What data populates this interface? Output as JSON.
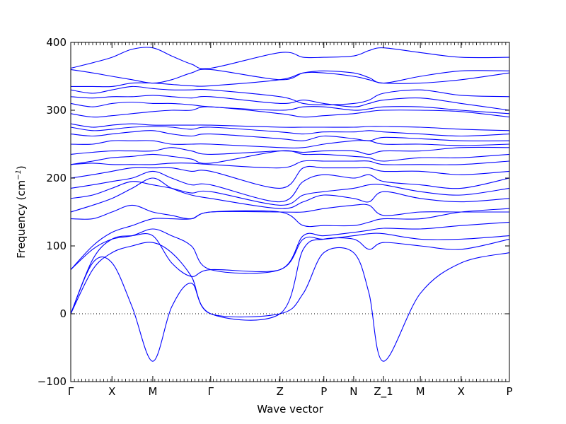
{
  "chart_data": {
    "type": "line",
    "title": "",
    "xlabel": "Wave vector",
    "ylabel": "Frequency (cm",
    "ylabel_sup": "−1",
    "ylabel_close": ")",
    "ylim": [
      -100,
      400
    ],
    "yticks": [
      -100,
      0,
      100,
      200,
      300,
      400
    ],
    "ytick_labels": [
      "−100",
      "0",
      "100",
      "200",
      "300",
      "400"
    ],
    "grid": false,
    "zero_line": true,
    "line_color": "#0000ff",
    "xlim": [
      0,
      10.0
    ],
    "high_symmetry_points": [
      {
        "label": "Γ",
        "x": 0.0
      },
      {
        "label": "X",
        "x": 0.94
      },
      {
        "label": "M",
        "x": 1.87
      },
      {
        "label": "Γ",
        "x": 3.19
      },
      {
        "label": "Z",
        "x": 4.77
      },
      {
        "label": "P",
        "x": 5.77
      },
      {
        "label": "N",
        "x": 6.45
      },
      {
        "label": "Z_1",
        "x": 7.13
      },
      {
        "label": "M",
        "x": 7.97
      },
      {
        "label": "X",
        "x": 8.9
      },
      {
        "label": "P",
        "x": 10.0
      }
    ],
    "series": [
      {
        "values": [
          0,
          75,
          75,
          10,
          -70,
          10,
          45,
          0,
          0,
          30,
          90,
          90,
          30,
          -70,
          30,
          75,
          90
        ]
      },
      {
        "values": [
          0,
          65,
          90,
          100,
          105,
          90,
          55,
          0,
          0,
          95,
          110,
          110,
          95,
          105,
          100,
          95,
          110
        ]
      },
      {
        "values": [
          0,
          80,
          110,
          115,
          115,
          75,
          55,
          65,
          65,
          110,
          110,
          115,
          118,
          118,
          110,
          110,
          115
        ]
      },
      {
        "values": [
          65,
          95,
          110,
          115,
          125,
          115,
          100,
          65,
          65,
          115,
          115,
          120,
          123,
          126,
          125,
          130,
          135
        ]
      },
      {
        "values": [
          65,
          100,
          120,
          130,
          140,
          140,
          140,
          150,
          150,
          130,
          130,
          130,
          135,
          140,
          140,
          150,
          155
        ]
      },
      {
        "values": [
          140,
          140,
          150,
          160,
          150,
          145,
          140,
          150,
          150,
          150,
          155,
          160,
          160,
          145,
          150,
          150,
          150
        ]
      },
      {
        "values": [
          150,
          160,
          170,
          185,
          200,
          185,
          175,
          170,
          155,
          165,
          175,
          170,
          165,
          180,
          170,
          165,
          170
        ]
      },
      {
        "values": [
          170,
          175,
          185,
          195,
          190,
          185,
          178,
          180,
          160,
          175,
          180,
          185,
          190,
          190,
          180,
          175,
          185
        ]
      },
      {
        "values": [
          185,
          190,
          195,
          200,
          210,
          200,
          190,
          190,
          165,
          195,
          205,
          200,
          205,
          195,
          190,
          185,
          200
        ]
      },
      {
        "values": [
          200,
          205,
          210,
          215,
          215,
          215,
          210,
          210,
          185,
          215,
          215,
          215,
          215,
          210,
          210,
          205,
          210
        ]
      },
      {
        "values": [
          220,
          222,
          220,
          220,
          220,
          222,
          222,
          220,
          215,
          225,
          225,
          225,
          225,
          220,
          220,
          220,
          225
        ]
      },
      {
        "values": [
          220,
          225,
          230,
          232,
          235,
          232,
          228,
          222,
          240,
          235,
          235,
          232,
          230,
          225,
          230,
          230,
          235
        ]
      },
      {
        "values": [
          235,
          238,
          240,
          240,
          240,
          245,
          240,
          235,
          240,
          238,
          240,
          240,
          235,
          240,
          240,
          245,
          245
        ]
      },
      {
        "values": [
          250,
          250,
          255,
          255,
          255,
          250,
          250,
          250,
          245,
          245,
          250,
          255,
          255,
          250,
          250,
          248,
          250
        ]
      },
      {
        "values": [
          265,
          262,
          265,
          268,
          270,
          265,
          262,
          265,
          258,
          255,
          262,
          258,
          255,
          260,
          258,
          255,
          255
        ]
      },
      {
        "values": [
          275,
          270,
          272,
          275,
          276,
          275,
          272,
          275,
          268,
          265,
          268,
          268,
          270,
          268,
          265,
          262,
          265
        ]
      },
      {
        "values": [
          280,
          275,
          278,
          280,
          278,
          278,
          278,
          278,
          275,
          275,
          275,
          275,
          276,
          276,
          275,
          272,
          270
        ]
      },
      {
        "values": [
          295,
          290,
          292,
          295,
          298,
          300,
          300,
          305,
          295,
          290,
          292,
          295,
          298,
          300,
          300,
          298,
          290
        ]
      },
      {
        "values": [
          310,
          305,
          310,
          312,
          310,
          310,
          308,
          305,
          300,
          305,
          305,
          300,
          302,
          305,
          305,
          300,
          295
        ]
      },
      {
        "values": [
          320,
          318,
          320,
          320,
          322,
          320,
          318,
          320,
          310,
          315,
          310,
          305,
          310,
          315,
          318,
          310,
          300
        ]
      },
      {
        "values": [
          330,
          325,
          330,
          335,
          332,
          330,
          330,
          330,
          320,
          310,
          308,
          310,
          315,
          325,
          330,
          322,
          320
        ]
      },
      {
        "values": [
          335,
          335,
          335,
          340,
          340,
          338,
          336,
          336,
          345,
          355,
          355,
          350,
          345,
          340,
          340,
          345,
          355
        ]
      },
      {
        "values": [
          360,
          355,
          350,
          345,
          340,
          345,
          355,
          360,
          345,
          355,
          358,
          355,
          348,
          340,
          350,
          358,
          358
        ]
      },
      {
        "values": [
          362,
          370,
          378,
          390,
          392,
          380,
          368,
          362,
          385,
          378,
          378,
          380,
          388,
          392,
          385,
          378,
          378
        ]
      }
    ],
    "series_x": [
      0.0,
      0.5,
      0.94,
      1.4,
      1.87,
      2.3,
      2.75,
      3.19,
      4.77,
      5.3,
      5.77,
      6.45,
      6.8,
      7.13,
      7.97,
      8.9,
      10.0
    ]
  }
}
